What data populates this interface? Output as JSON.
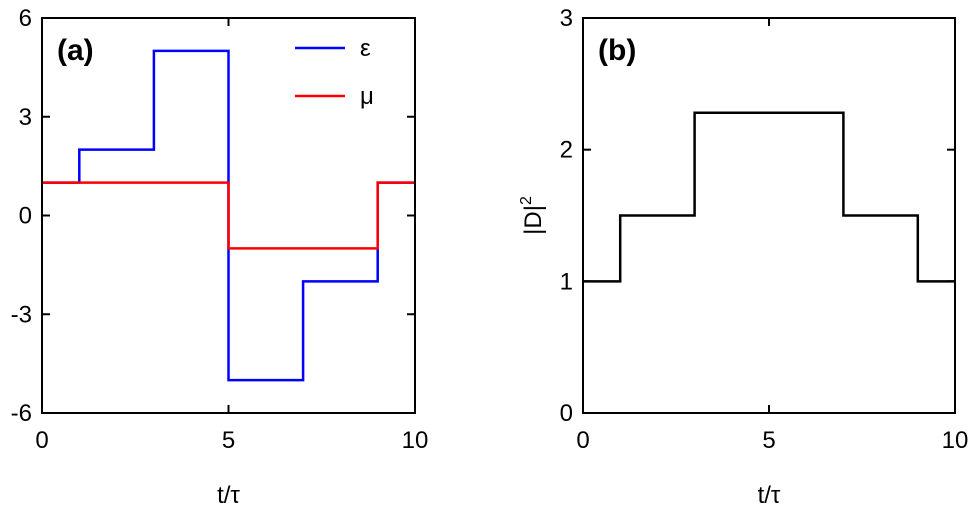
{
  "chart_data": [
    {
      "type": "line",
      "panel_label": "(a)",
      "xlabel": "t/τ",
      "xlim": [
        0,
        10
      ],
      "xticks": [
        0,
        5,
        10
      ],
      "ylim": [
        -6,
        6
      ],
      "yticks": [
        -6,
        -3,
        0,
        3,
        6
      ],
      "legend": "upper right",
      "series": [
        {
          "name": "ε",
          "color": "#0000ff",
          "x": [
            0,
            1,
            1,
            3,
            3,
            5,
            5,
            7,
            7,
            9,
            9,
            10
          ],
          "values": [
            1,
            1,
            2,
            2,
            5,
            5,
            -5,
            -5,
            -2,
            -2,
            1,
            1
          ]
        },
        {
          "name": "μ",
          "color": "#ff0000",
          "x": [
            0,
            5,
            5,
            9,
            9,
            10
          ],
          "values": [
            1,
            1,
            -1,
            -1,
            1,
            1
          ]
        }
      ]
    },
    {
      "type": "line",
      "panel_label": "(b)",
      "xlabel": "t/τ",
      "ylabel": "|D|",
      "ylabel_superscript": "2",
      "xlim": [
        0,
        10
      ],
      "xticks": [
        0,
        5,
        10
      ],
      "ylim": [
        0,
        3
      ],
      "yticks": [
        0,
        1,
        2,
        3
      ],
      "series": [
        {
          "color": "#000000",
          "x": [
            0,
            1,
            1,
            3,
            3,
            7,
            7,
            9,
            9,
            10
          ],
          "values": [
            1,
            1,
            1.5,
            1.5,
            2.28,
            2.28,
            1.5,
            1.5,
            1,
            1
          ]
        }
      ]
    }
  ]
}
